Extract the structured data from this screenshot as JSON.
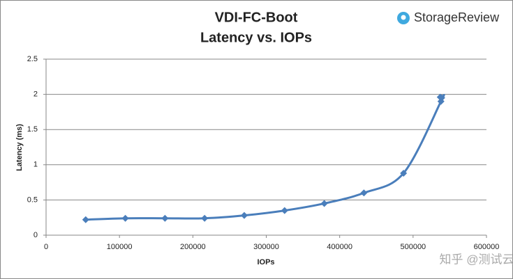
{
  "chart_data": {
    "type": "line",
    "title": "VDI-FC-Boot",
    "subtitle": "Latency vs. IOPs",
    "brand": "StorageReview",
    "watermark": "知乎 @测试云",
    "x_label": "IOPs",
    "y_label": "Latency (ms)",
    "x": [
      54000,
      108000,
      162000,
      216000,
      270000,
      325000,
      379000,
      433000,
      487000,
      538000,
      539000,
      537000
    ],
    "values": [
      0.22,
      0.24,
      0.24,
      0.24,
      0.28,
      0.35,
      0.45,
      0.6,
      0.88,
      1.9,
      1.95,
      1.96
    ],
    "color": "#4a7ebb",
    "xlim": [
      0,
      600000
    ],
    "xticks": [
      0,
      100000,
      200000,
      300000,
      400000,
      500000,
      600000
    ],
    "ylim": [
      0,
      2.5
    ],
    "yticks": [
      0,
      0.5,
      1,
      1.5,
      2,
      2.5
    ],
    "grid": true
  }
}
